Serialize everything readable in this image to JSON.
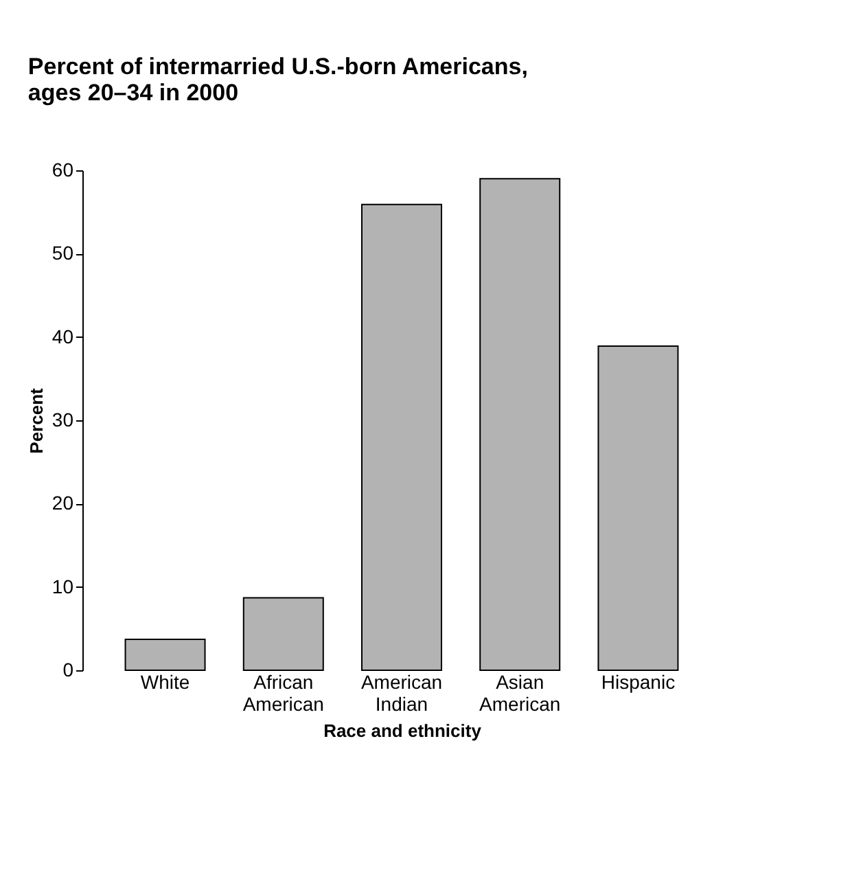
{
  "chart_data": {
    "type": "bar",
    "title": "Percent of intermarried U.S.-born Americans, ages 20–34 in 2000",
    "categories": [
      "White",
      "African American",
      "American Indian",
      "Asian American",
      "Hispanic"
    ],
    "values": [
      3.7,
      8.7,
      55.9,
      59,
      38.9
    ],
    "color": "#b3b3b3",
    "xlabel": "Race and ethnicity",
    "ylabel": "Percent",
    "ylim": [
      0,
      60
    ],
    "yticks": [
      0,
      10,
      20,
      30,
      40,
      50,
      60
    ],
    "grid": false
  }
}
